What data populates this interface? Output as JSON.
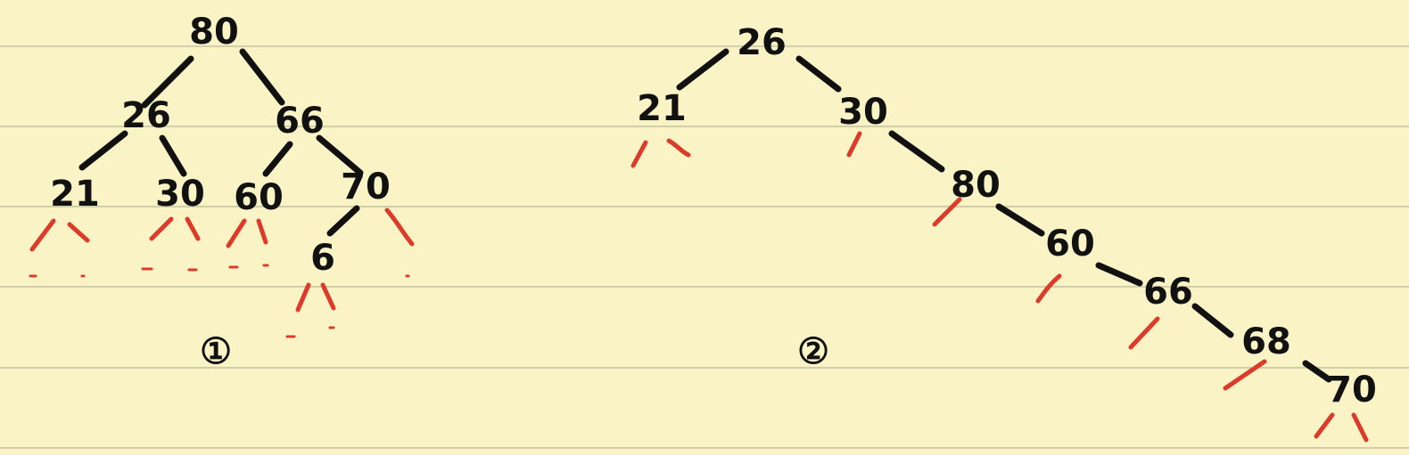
{
  "colors": {
    "paper": "#faf3c6",
    "ruled_line": "#b9b79a",
    "ink": "#111111",
    "nil_link": "#dd3b2a"
  },
  "tree1": {
    "label": "①",
    "nodes": {
      "root": "80",
      "left": "26",
      "right": "66",
      "ll": "21",
      "lr": "30",
      "rl": "60",
      "rr": "70",
      "rrl": "6"
    }
  },
  "tree2": {
    "label": "②",
    "nodes": {
      "root": "26",
      "left": "21",
      "n30": "30",
      "n80": "80",
      "n60": "60",
      "n66": "66",
      "n68": "68",
      "n70": "70"
    }
  }
}
